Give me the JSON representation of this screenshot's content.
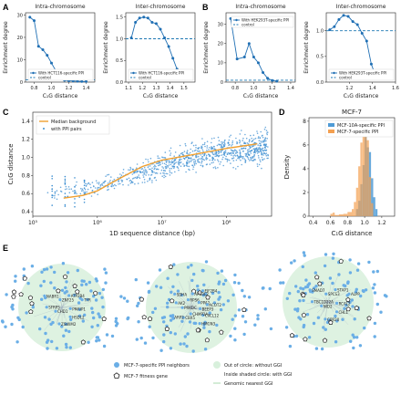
{
  "panel_labels": {
    "A": "A",
    "B": "B",
    "C": "C",
    "D": "D",
    "E": "E"
  },
  "chart_data": [
    {
      "id": "A-intra",
      "type": "line",
      "title": "Intra-chromosome",
      "xlabel": "C₁G distance",
      "ylabel": "Enrichment degree",
      "xlim": [
        0.7,
        1.5
      ],
      "ylim": [
        0,
        31
      ],
      "xticks": [
        "0.8",
        "1.0",
        "1.2",
        "1.4"
      ],
      "yticks": [
        "0",
        "10",
        "20",
        "30"
      ],
      "series": [
        {
          "name": "With HCT116-specific PPI",
          "x": [
            0.75,
            0.8,
            0.85,
            0.9,
            0.95,
            1.0,
            1.05,
            1.1,
            1.15,
            1.2,
            1.25,
            1.3,
            1.35,
            1.4
          ],
          "y": [
            29,
            27.5,
            16,
            14.5,
            12,
            8.5,
            5,
            1.5,
            0.8,
            0.6,
            0.5,
            0.4,
            0.3,
            0.3
          ]
        }
      ],
      "control": {
        "name": "control",
        "y": 1
      },
      "legend": "bottom-left"
    },
    {
      "id": "A-inter",
      "type": "line",
      "title": "Inter-chromosome",
      "xlabel": "C₁G distance",
      "ylabel": "Enrichment degree",
      "xlim": [
        1.08,
        1.58
      ],
      "ylim": [
        0,
        1.6
      ],
      "xticks": [
        "1.1",
        "1.2",
        "1.3",
        "1.4",
        "1.5"
      ],
      "yticks": [
        "0.0",
        "0.5",
        "1.0",
        "1.5"
      ],
      "series": [
        {
          "name": "With HCT116-specific PPI",
          "x": [
            1.12,
            1.15,
            1.18,
            1.21,
            1.24,
            1.27,
            1.3,
            1.33,
            1.36,
            1.39,
            1.42,
            1.45,
            1.48,
            1.52
          ],
          "y": [
            1.02,
            1.38,
            1.48,
            1.5,
            1.48,
            1.38,
            1.35,
            1.22,
            1.02,
            0.82,
            0.55,
            0.3,
            0.15,
            0.12
          ]
        }
      ],
      "control": {
        "name": "control",
        "y": 1
      },
      "legend": "bottom-left"
    },
    {
      "id": "B-intra",
      "type": "line",
      "title": "Intra-chromosome",
      "xlabel": "C₁G distance",
      "ylabel": "Enrichment degree",
      "xlim": [
        0.7,
        1.45
      ],
      "ylim": [
        0,
        36
      ],
      "xticks": [
        "0.8",
        "1.0",
        "1.2",
        "1.4"
      ],
      "yticks": [
        "0",
        "10",
        "20",
        "30"
      ],
      "series": [
        {
          "name": "With HEK293T-specific PPI",
          "x": [
            0.75,
            0.82,
            0.9,
            0.95,
            1.0,
            1.05,
            1.1,
            1.15,
            1.2,
            1.25
          ],
          "y": [
            33,
            12,
            13,
            20,
            13,
            10,
            5,
            2,
            0.8,
            0.5
          ]
        }
      ],
      "control": {
        "name": "control",
        "y": 1
      },
      "legend": "top-right"
    },
    {
      "id": "B-inter",
      "type": "line",
      "title": "Inter-chromosome",
      "xlabel": "C₁G distance",
      "ylabel": "Enrichment degree",
      "xlim": [
        1.0,
        1.6
      ],
      "ylim": [
        0,
        1.35
      ],
      "xticks": [
        "1.2",
        "1.4",
        "1.6"
      ],
      "yticks": [
        "0.0",
        "0.5",
        "1.0"
      ],
      "series": [
        {
          "name": "With HEK293T-specific PPI",
          "x": [
            1.03,
            1.07,
            1.11,
            1.15,
            1.19,
            1.23,
            1.27,
            1.31,
            1.35,
            1.39,
            1.43
          ],
          "y": [
            1.02,
            1.08,
            1.22,
            1.3,
            1.28,
            1.18,
            1.12,
            0.95,
            0.8,
            0.35,
            0.1
          ]
        }
      ],
      "control": {
        "name": "control",
        "y": 1
      },
      "legend": "bottom-left"
    },
    {
      "id": "C",
      "type": "scatter",
      "xlabel": "1D sequence distance (bp)",
      "ylabel": "C₁G distance",
      "xscale": "log",
      "xticks": [
        "10⁵",
        "10⁶",
        "10⁷",
        "10⁸"
      ],
      "yticks": [
        "0.4",
        "0.6",
        "0.8",
        "1.0",
        "1.2",
        "1.4"
      ],
      "ylim": [
        0.35,
        1.5
      ],
      "median_background": {
        "name": "Median background",
        "x": [
          300000,
          600000,
          1000000,
          2000000,
          5000000,
          10000000,
          30000000,
          100000000,
          300000000
        ],
        "y": [
          0.55,
          0.58,
          0.63,
          0.75,
          0.9,
          0.97,
          1.03,
          1.1,
          1.15
        ]
      },
      "points_name": "with PPI pairs",
      "legend": "top-left"
    },
    {
      "id": "D",
      "type": "histogram",
      "title": "MCF-7",
      "xlabel": "C₁G distance",
      "ylabel": "Density",
      "xlim": [
        0.35,
        1.35
      ],
      "ylim": [
        0,
        8.3
      ],
      "xticks": [
        "0.4",
        "0.6",
        "0.8",
        "1.0",
        "1.2"
      ],
      "yticks": [
        "0",
        "2",
        "4",
        "6",
        "8"
      ],
      "series": [
        {
          "name": "MCF-10A-specific PPI",
          "color": "#4f9bd6",
          "bins": [
            0.9,
            0.925,
            0.95,
            0.975,
            1.0,
            1.025,
            1.05,
            1.075,
            1.1,
            1.125,
            1.15
          ],
          "values": [
            0.6,
            1.3,
            2.7,
            4.3,
            6.9,
            5.8,
            5.4,
            3.2,
            1.6,
            0.6
          ]
        },
        {
          "name": "MCF-7-specific PPI",
          "color": "#f4a050",
          "bins": [
            0.6,
            0.625,
            0.65,
            0.7,
            0.75,
            0.8,
            0.85,
            0.875,
            0.9,
            0.925,
            0.95,
            0.975,
            1.0,
            1.025,
            1.05,
            1.075,
            1.1
          ],
          "values": [
            0.2,
            0.3,
            0.1,
            0.15,
            0.2,
            0.35,
            0.6,
            1.2,
            2.4,
            4.2,
            6.2,
            7.2,
            7.9,
            6.4,
            3.3,
            1.1
          ]
        }
      ],
      "legend": "top-right"
    }
  ],
  "panel_e": {
    "net1_labels": [
      "PMAIP1",
      "HSDL2",
      "ZSWIM2",
      "CHD1",
      "SFRP5",
      "NABR1",
      "ZNF25",
      "ATP2B4",
      "TYR"
    ],
    "net2_labels": [
      "BEEP3",
      "CXCL12",
      "HMGN3",
      "CHMP2A",
      "CBX5",
      "ARP2",
      "PRKDC",
      "AK2",
      "SDHA",
      "RPS6",
      "AFG3L2",
      "EIF2B4",
      "PPA2",
      "ACOT2"
    ],
    "net3_labels": [
      "RCAL2",
      "CHL1",
      "GPR20",
      "NID2",
      "TBC1D22A",
      "SMAD7",
      "SPCS3",
      "STAP1",
      "ALPP"
    ],
    "legend": {
      "neighbors": "MCF-7-specific PPI neighbors",
      "fitness": "MCF-7 fitness gene",
      "out_circle": "Out of circle: without GGI",
      "inside_circle": "Inside shaded circle: with GGI",
      "nearest": "Genomic nearest GGI"
    },
    "colors": {
      "node": "#6aaee6",
      "circle": "#d8f0dc",
      "fitness": "#222222"
    }
  }
}
